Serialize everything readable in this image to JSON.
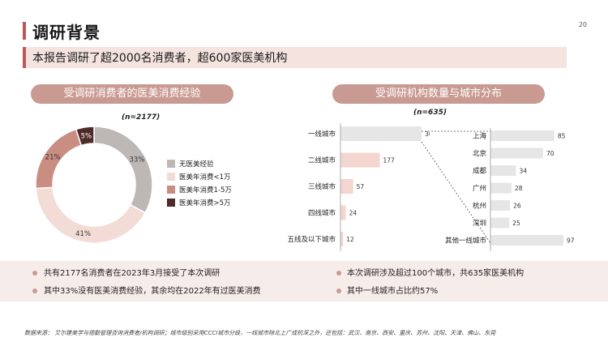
{
  "page": {
    "title": "调研背景",
    "page_number": "20",
    "subtitle": "本报告调研了超2000名消费者，超600家医美机构",
    "source": "数据来源： 艾尔建美学与德勤管理咨询消费者/机构调研；城市级别采用CCCI城市分级，一线城市除北上广成杭深之外，还包括：武汉、南京、西安、重庆、苏州、沈阳、天津、佛山、东莞"
  },
  "left_panel": {
    "header": "受调研消费者的医美消费经验",
    "n_label": "(n=2177)"
  },
  "right_panel": {
    "header": "受调研机构数量与城市分布",
    "n_label": "(n=635)"
  },
  "bullets": {
    "left": [
      "共有2177名消费者在2023年3月接受了本次调研",
      "其中33%没有医美消费经验，其余均在2022年有过医美消费"
    ],
    "right": [
      "本次调研涉及超过100个城市，共635家医美机构",
      "其中一线城市占比约57%"
    ]
  },
  "colors": {
    "accent": "#b85a5a",
    "pill": "#c99a92",
    "donut": [
      "#bdb8b6",
      "#f3dcd6",
      "#c98d82",
      "#4e2a2a"
    ],
    "bar_left": [
      "#e6e6e6",
      "#f2d6cf",
      "#f2d6cf",
      "#f2d6cf",
      "#f2d6cf"
    ],
    "bar_right": "#e6e6e6"
  },
  "chart_data": [
    {
      "type": "pie",
      "subtype": "donut",
      "categories": [
        "无医美经验",
        "医美年消费<1万",
        "医美年消费1-5万",
        "医美年消费>5万"
      ],
      "values": [
        33,
        41,
        21,
        5
      ],
      "labels": [
        "33%",
        "41%",
        "21%",
        "5%"
      ],
      "legend_position": "right"
    },
    {
      "type": "bar",
      "orientation": "horizontal",
      "categories": [
        "一线城市",
        "二线城市",
        "三线城市",
        "四线城市",
        "五线及以下城市"
      ],
      "values": [
        365,
        177,
        57,
        24,
        12
      ]
    },
    {
      "type": "bar",
      "orientation": "horizontal",
      "categories": [
        "上海",
        "北京",
        "成都",
        "广州",
        "杭州",
        "深圳",
        "其他一线城市"
      ],
      "values": [
        85,
        70,
        34,
        28,
        26,
        25,
        97
      ]
    }
  ]
}
